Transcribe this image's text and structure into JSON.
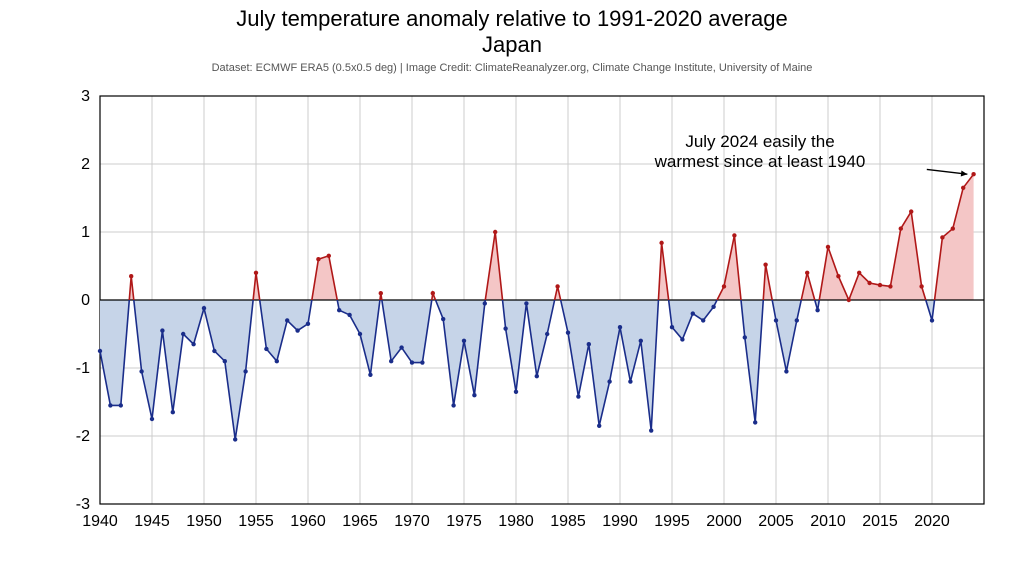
{
  "title": "July temperature anomaly relative to 1991-2020 average",
  "subtitle": "Japan",
  "caption": "Dataset: ECMWF ERA5 (0.5x0.5 deg) | Image Credit: ClimateReanalyzer.org, Climate Change Institute, University of Maine",
  "chart": {
    "type": "area-line",
    "x_start": 1940,
    "x_end": 2025,
    "xtick_step": 5,
    "ylim": [
      -3,
      3
    ],
    "ytick_step": 1,
    "axis_color": "#000000",
    "grid_color": "#cccccc",
    "pos_fill": "#f4c6c6",
    "neg_fill": "#c6d4e8",
    "pos_line": "#b01818",
    "neg_line": "#1a2d8a",
    "marker_radius": 2.2,
    "line_width": 1.6,
    "axis_fontsize": 16,
    "background_color": "#ffffff",
    "years": [
      1940,
      1941,
      1942,
      1943,
      1944,
      1945,
      1946,
      1947,
      1948,
      1949,
      1950,
      1951,
      1952,
      1953,
      1954,
      1955,
      1956,
      1957,
      1958,
      1959,
      1960,
      1961,
      1962,
      1963,
      1964,
      1965,
      1966,
      1967,
      1968,
      1969,
      1970,
      1971,
      1972,
      1973,
      1974,
      1975,
      1976,
      1977,
      1978,
      1979,
      1980,
      1981,
      1982,
      1983,
      1984,
      1985,
      1986,
      1987,
      1988,
      1989,
      1990,
      1991,
      1992,
      1993,
      1994,
      1995,
      1996,
      1997,
      1998,
      1999,
      2000,
      2001,
      2002,
      2003,
      2004,
      2005,
      2006,
      2007,
      2008,
      2009,
      2010,
      2011,
      2012,
      2013,
      2014,
      2015,
      2016,
      2017,
      2018,
      2019,
      2020,
      2021,
      2022,
      2023,
      2024
    ],
    "values": [
      -0.75,
      -1.55,
      -1.55,
      0.35,
      -1.05,
      -1.75,
      -0.45,
      -1.65,
      -0.5,
      -0.65,
      -0.12,
      -0.75,
      -0.9,
      -2.05,
      -1.05,
      0.4,
      -0.72,
      -0.9,
      -0.3,
      -0.45,
      -0.35,
      0.6,
      0.65,
      -0.15,
      -0.22,
      -0.5,
      -1.1,
      0.1,
      -0.9,
      -0.7,
      -0.92,
      -0.92,
      0.1,
      -0.28,
      -1.55,
      -0.6,
      -1.4,
      -0.05,
      1.0,
      -0.42,
      -1.35,
      -0.05,
      -1.12,
      -0.5,
      0.2,
      -0.48,
      -1.42,
      -0.65,
      -1.85,
      -1.2,
      -0.4,
      -1.2,
      -0.6,
      -1.92,
      0.84,
      -0.4,
      -0.58,
      -0.2,
      -0.3,
      -0.1,
      0.2,
      0.95,
      -0.55,
      -1.8,
      0.52,
      -0.3,
      -1.05,
      -0.3,
      0.4,
      -0.15,
      0.78,
      0.35,
      0.0,
      0.4,
      0.25,
      0.22,
      0.2,
      1.05,
      1.3,
      0.2,
      -0.3,
      0.92,
      1.05,
      1.65,
      1.85
    ]
  },
  "annotation": {
    "line1": "July 2024 easily the",
    "line2": "warmest since at least 1940"
  }
}
